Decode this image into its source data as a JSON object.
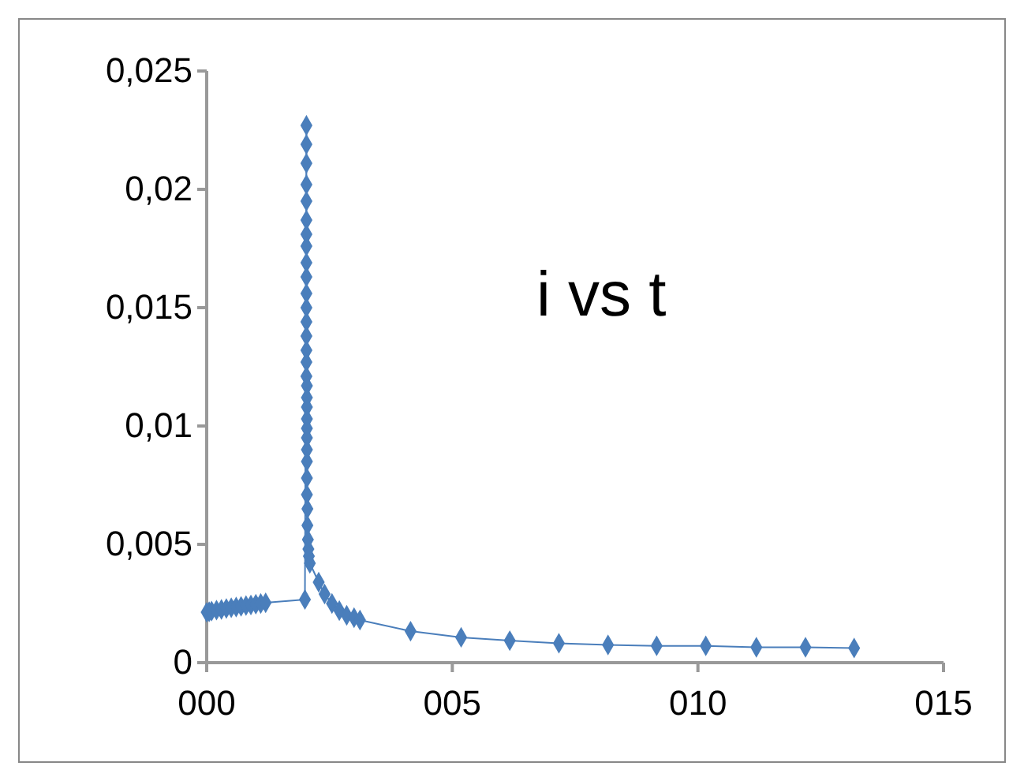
{
  "chart_data": {
    "type": "line",
    "title": "i vs t",
    "marker": "diamond",
    "grid": false,
    "xlim": [
      0,
      15
    ],
    "xticks": [
      {
        "value": 0,
        "label": "000"
      },
      {
        "value": 5,
        "label": "005"
      },
      {
        "value": 10,
        "label": "010"
      },
      {
        "value": 15,
        "label": "015"
      }
    ],
    "ylim": [
      0,
      0.025
    ],
    "yticks": [
      0,
      {
        "value": 0.005,
        "label": "0,005"
      },
      {
        "value": 0.01,
        "label": "0,01"
      },
      {
        "value": 0.015,
        "label": "0,015"
      },
      {
        "value": 0.02,
        "label": "0,02"
      },
      {
        "value": 0.025,
        "label": "0,025"
      }
    ],
    "series": [
      {
        "color": "#4a7ebb",
        "line_style": "solid",
        "x": [
          0,
          0.05,
          0.1,
          0.2,
          0.3,
          0.4,
          0.5,
          0.6,
          0.7,
          0.8,
          0.9,
          1.0,
          1.1,
          1.2,
          2.0,
          2.03,
          2.03,
          2.03,
          2.03,
          2.03,
          2.03,
          2.03,
          2.03,
          2.03,
          2.03,
          2.03,
          2.03,
          2.03,
          2.03,
          2.03,
          2.03,
          2.03,
          2.04,
          2.04,
          2.04,
          2.04,
          2.04,
          2.04,
          2.04,
          2.04,
          2.04,
          2.04,
          2.05,
          2.05,
          2.06,
          2.07,
          2.08,
          2.1,
          2.28,
          2.4,
          2.55,
          2.7,
          2.85,
          3.0,
          3.12,
          4.15,
          5.18,
          6.17,
          7.17,
          8.17,
          9.16,
          10.16,
          11.19,
          12.19,
          13.18
        ],
        "values": [
          0.00213,
          0.00215,
          0.00218,
          0.00222,
          0.00225,
          0.00229,
          0.00232,
          0.00235,
          0.00238,
          0.00241,
          0.00244,
          0.00247,
          0.0025,
          0.00253,
          0.00267,
          0.0227,
          0.0219,
          0.0211,
          0.0202,
          0.0195,
          0.0187,
          0.0181,
          0.0176,
          0.0169,
          0.0163,
          0.0156,
          0.015,
          0.0144,
          0.0138,
          0.0132,
          0.0127,
          0.0121,
          0.0117,
          0.0112,
          0.0108,
          0.0103,
          0.0099,
          0.0095,
          0.009,
          0.0085,
          0.0078,
          0.0071,
          0.0065,
          0.0058,
          0.0052,
          0.0048,
          0.0045,
          0.0042,
          0.0034,
          0.0029,
          0.0025,
          0.0022,
          0.002,
          0.0019,
          0.0018,
          0.00133,
          0.00107,
          0.00093,
          0.00082,
          0.00075,
          0.00071,
          0.00071,
          0.00065,
          0.00065,
          0.00062
        ]
      }
    ]
  }
}
